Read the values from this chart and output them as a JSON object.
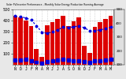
{
  "title": "Solar PV/Inverter Performance - Monthly Solar Energy Production Running Average",
  "bar_values": [
    440,
    430,
    400,
    350,
    140,
    75,
    355,
    385,
    415,
    445,
    350,
    390,
    430,
    175,
    110,
    345,
    385,
    415,
    440
  ],
  "running_avg": [
    440,
    435,
    423,
    405,
    353,
    296,
    284,
    298,
    316,
    340,
    337,
    343,
    352,
    335,
    308,
    308,
    316,
    326,
    340
  ],
  "small_markers": [
    35,
    38,
    42,
    32,
    18,
    8,
    22,
    30,
    38,
    42,
    35,
    30,
    32,
    25,
    15,
    28,
    32,
    38,
    42
  ],
  "bar_color": "#dd0000",
  "avg_color": "#0000dd",
  "marker_color": "#0000dd",
  "bg_color": "#e8e8e8",
  "plot_bg": "#ffffff",
  "grid_color": "#aaaaaa",
  "legend_bg": "#e0e0e0",
  "ylim": [
    0,
    500
  ],
  "ytick_values": [
    100,
    200,
    300,
    400,
    500
  ],
  "ytick_labels": [
    "100",
    "200",
    "300",
    "400",
    "500"
  ],
  "months": [
    "N",
    "D",
    "J",
    "F",
    "M",
    "A",
    "M",
    "J",
    "J",
    "A",
    "S",
    "O",
    "N",
    "D",
    "J",
    "F",
    "M",
    "A",
    "M"
  ],
  "n_bars": 19
}
